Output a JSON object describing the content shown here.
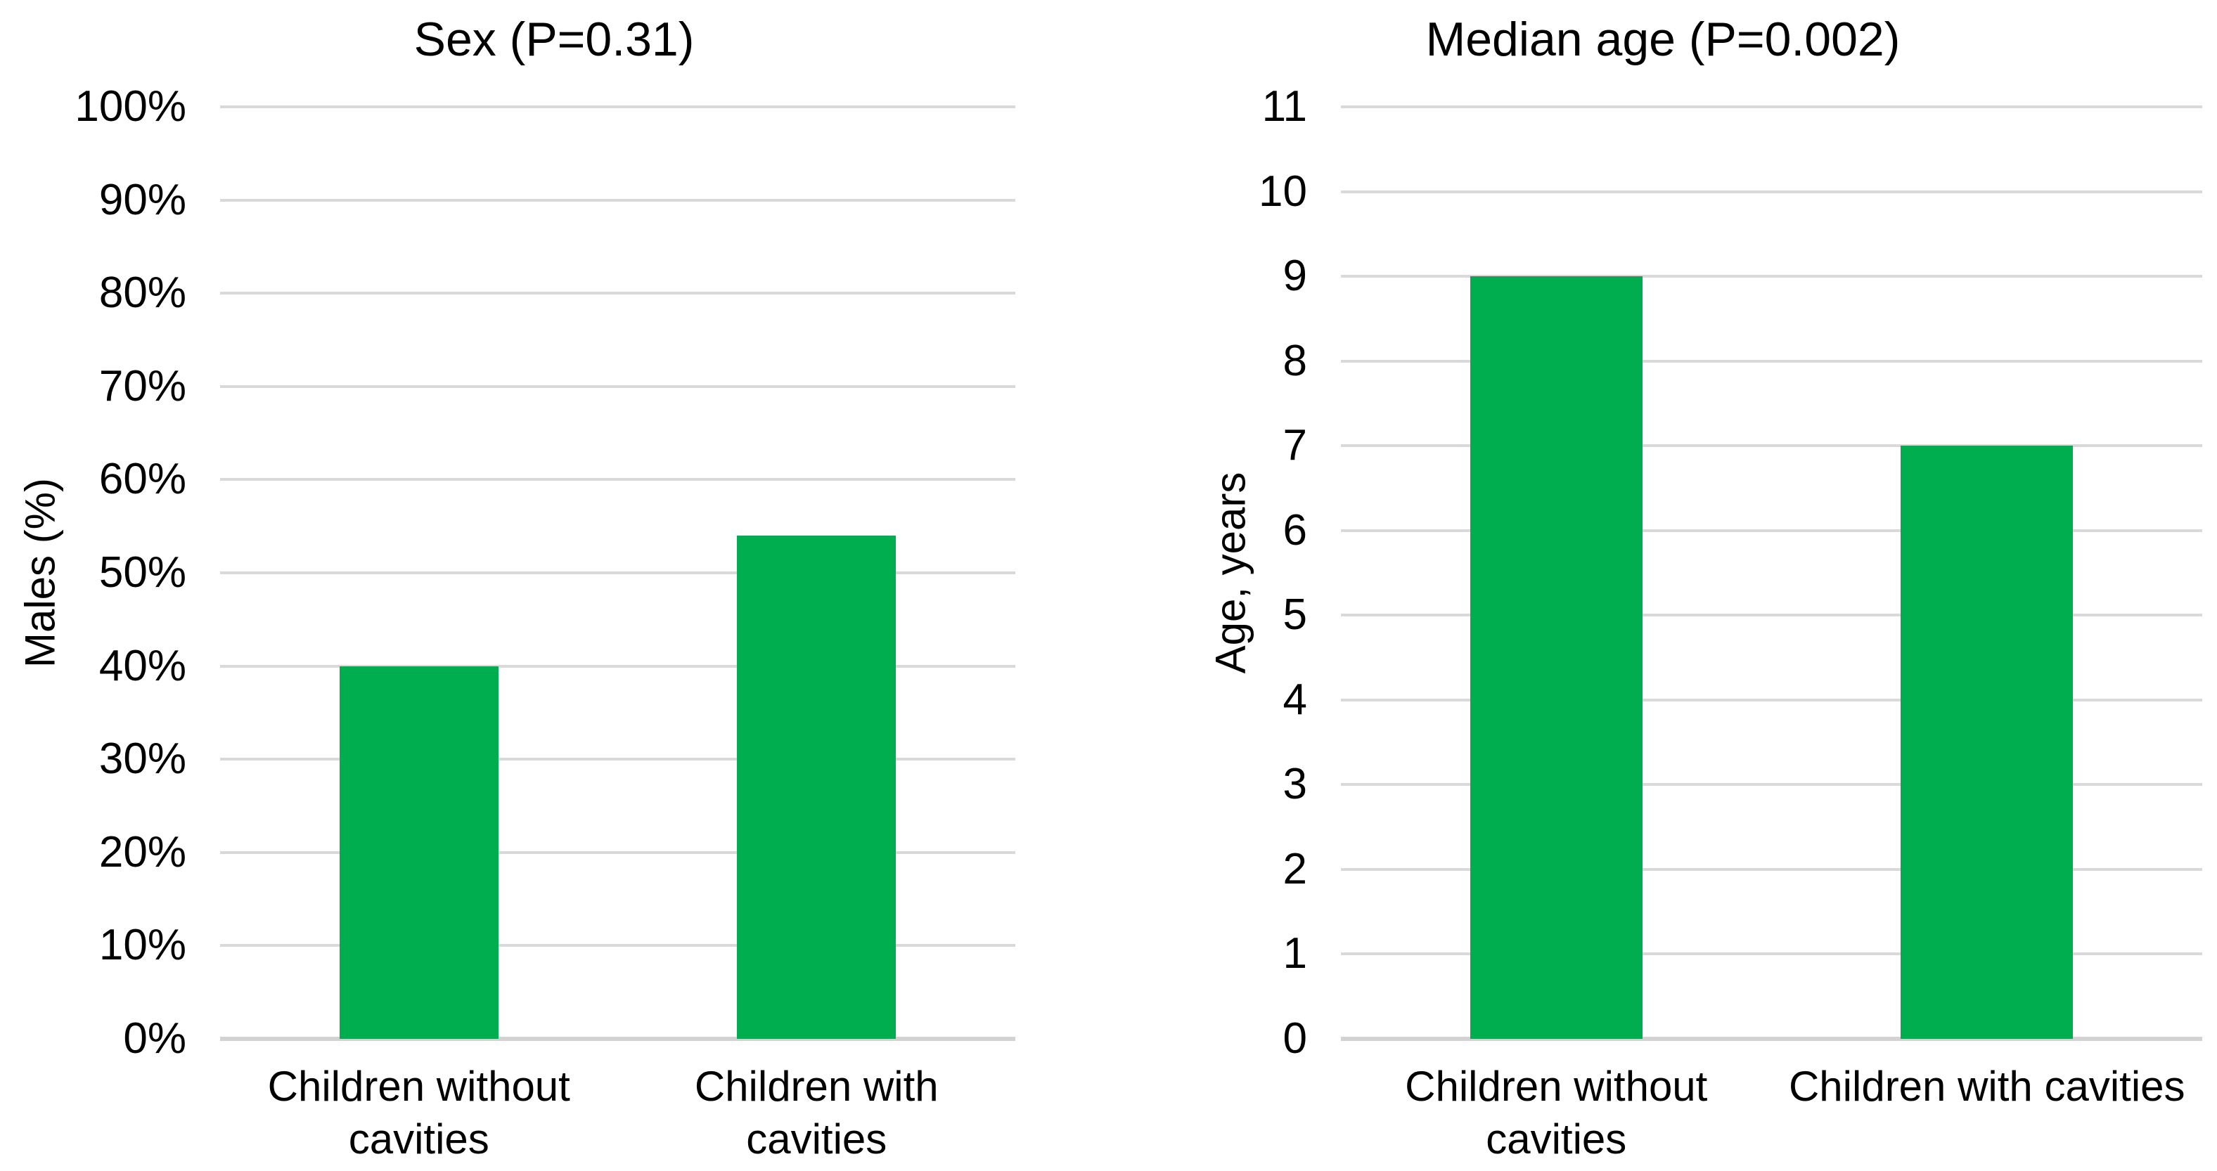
{
  "figure": {
    "background": "#FFFFFF",
    "text_color": "#000000"
  },
  "chart_data": [
    {
      "type": "bar",
      "title": "Sex (P=0.31)",
      "ylabel": "Males (%)",
      "xlabel": "",
      "categories": [
        "Children without\ncavities",
        "Children with\ncavities"
      ],
      "values": [
        40,
        54
      ],
      "ylim": [
        0,
        100
      ],
      "yticks": [
        0,
        10,
        20,
        30,
        40,
        50,
        60,
        70,
        80,
        90,
        100
      ],
      "ytick_labels": [
        "0%",
        "10%",
        "20%",
        "30%",
        "40%",
        "50%",
        "60%",
        "70%",
        "80%",
        "90%",
        "100%"
      ],
      "bar_color": "#00AE50",
      "grid": true,
      "gridline_color": "#D9D9D9",
      "axis_line_color": "#D2D2D2",
      "legend_position": "none"
    },
    {
      "type": "bar",
      "title": "Median age (P=0.002)",
      "ylabel": "Age, years",
      "xlabel": "",
      "categories": [
        "Children without\ncavities",
        "Children with cavities"
      ],
      "values": [
        9,
        7
      ],
      "ylim": [
        0,
        11
      ],
      "yticks": [
        0,
        1,
        2,
        3,
        4,
        5,
        6,
        7,
        8,
        9,
        10,
        11
      ],
      "ytick_labels": [
        "0",
        "1",
        "2",
        "3",
        "4",
        "5",
        "6",
        "7",
        "8",
        "9",
        "10",
        "11"
      ],
      "bar_color": "#00AE50",
      "grid": true,
      "gridline_color": "#D9D9D9",
      "axis_line_color": "#D2D2D2",
      "legend_position": "none"
    }
  ]
}
